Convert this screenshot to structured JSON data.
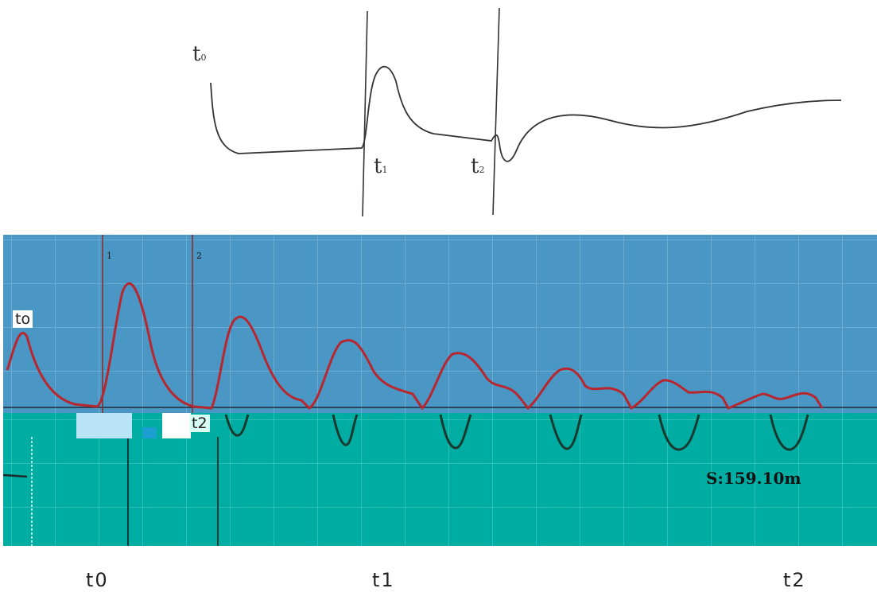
{
  "sketch": {
    "label_t0": {
      "base": "t",
      "sub": "0"
    },
    "label_t1": {
      "base": "t",
      "sub": "1"
    },
    "label_t2": {
      "base": "t",
      "sub": "2"
    }
  },
  "scope": {
    "tag_t0": "to",
    "tag_t2": "t2",
    "cursor_1": "1",
    "cursor_2": "2",
    "readout": "S:159.10m",
    "upper_bg": "#4a96c4",
    "lower_bg": "#00ada2",
    "trace_color": "#b8262e"
  },
  "bottom_labels": [
    "t0",
    "t1",
    "t2"
  ]
}
